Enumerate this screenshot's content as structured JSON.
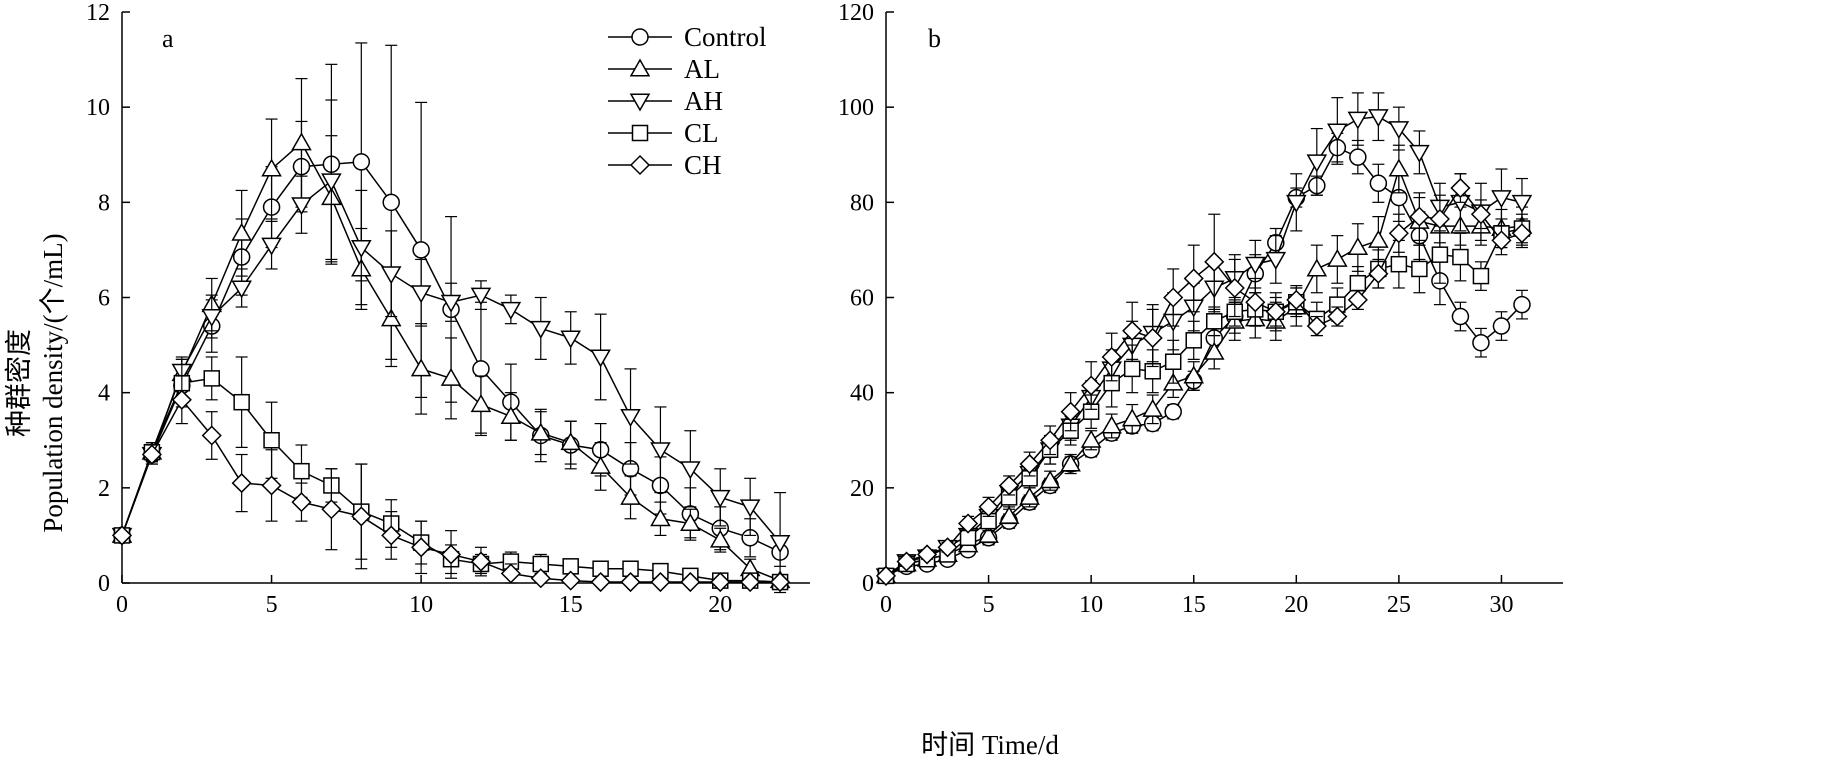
{
  "figure": {
    "ylabel_cn": "种群密度",
    "ylabel_en": "Population density/(个/mL)",
    "xlabel": "时间 Time/d"
  },
  "legend": [
    "Control",
    "AL",
    "AH",
    "CL",
    "CH"
  ],
  "chart_data": [
    {
      "type": "line",
      "panel_label": "a",
      "xlim": [
        0,
        23
      ],
      "ylim": [
        0,
        12
      ],
      "x_ticks": [
        0,
        5,
        10,
        15,
        20
      ],
      "y_ticks": [
        0,
        2,
        4,
        6,
        8,
        10,
        12
      ],
      "series": [
        {
          "name": "Control",
          "marker": "circle",
          "x": [
            0,
            1,
            2,
            3,
            4,
            5,
            6,
            7,
            8,
            9,
            10,
            11,
            12,
            13,
            14,
            15,
            16,
            17,
            18,
            19,
            20,
            21,
            22
          ],
          "y": [
            1.0,
            2.7,
            4.15,
            5.4,
            6.85,
            7.9,
            8.75,
            8.8,
            8.85,
            8.0,
            7.0,
            5.75,
            4.5,
            3.8,
            3.1,
            2.9,
            2.8,
            2.4,
            2.05,
            1.45,
            1.15,
            0.95,
            0.65
          ],
          "err": [
            0,
            0.15,
            0.3,
            0.55,
            0.8,
            0.85,
            0.95,
            2.1,
            2.5,
            3.3,
            3.1,
            1.95,
            1.4,
            0.8,
            0.55,
            0.5,
            0.55,
            0.55,
            0.6,
            0.55,
            0.45,
            0.4,
            0.3
          ]
        },
        {
          "name": "AL",
          "marker": "triangle-up",
          "x": [
            0,
            1,
            2,
            3,
            4,
            5,
            6,
            7,
            8,
            9,
            10,
            11,
            12,
            13,
            14,
            15,
            16,
            17,
            18,
            19,
            20,
            21,
            22
          ],
          "y": [
            1.0,
            2.75,
            4.4,
            5.85,
            7.35,
            8.7,
            9.25,
            8.1,
            6.6,
            5.55,
            4.5,
            4.3,
            3.75,
            3.5,
            3.15,
            2.95,
            2.45,
            1.8,
            1.35,
            1.25,
            0.9,
            0.3,
            0.05
          ],
          "err": [
            0,
            0.2,
            0.3,
            0.55,
            0.9,
            1.05,
            1.35,
            1.3,
            0.85,
            1.0,
            0.95,
            0.85,
            0.6,
            0.5,
            0.45,
            0.45,
            0.5,
            0.45,
            0.35,
            0.3,
            0.25,
            0.2,
            0.05
          ]
        },
        {
          "name": "AH",
          "marker": "triangle-down",
          "x": [
            0,
            1,
            2,
            3,
            4,
            5,
            6,
            7,
            8,
            9,
            10,
            11,
            12,
            13,
            14,
            15,
            16,
            17,
            18,
            19,
            20,
            21,
            22
          ],
          "y": [
            1.0,
            2.7,
            4.45,
            5.6,
            6.2,
            7.1,
            7.95,
            8.45,
            7.05,
            6.5,
            6.1,
            5.9,
            6.05,
            5.75,
            5.35,
            5.15,
            4.75,
            3.5,
            2.8,
            2.4,
            1.8,
            1.6,
            0.85
          ],
          "err": [
            0,
            0.2,
            0.3,
            0.45,
            0.4,
            0.5,
            0.6,
            1.7,
            1.2,
            0.9,
            0.7,
            0.4,
            0.3,
            0.3,
            0.65,
            0.55,
            0.9,
            1.0,
            0.9,
            0.8,
            0.6,
            0.6,
            1.05
          ]
        },
        {
          "name": "CL",
          "marker": "square",
          "x": [
            0,
            1,
            2,
            3,
            4,
            5,
            6,
            7,
            8,
            9,
            10,
            11,
            12,
            13,
            14,
            15,
            16,
            17,
            18,
            19,
            20,
            21,
            22
          ],
          "y": [
            1.0,
            2.75,
            4.2,
            4.3,
            3.8,
            3.0,
            2.35,
            2.05,
            1.5,
            1.25,
            0.85,
            0.5,
            0.4,
            0.45,
            0.4,
            0.35,
            0.3,
            0.3,
            0.25,
            0.15,
            0.05,
            0.05,
            0.02
          ],
          "err": [
            0,
            0.2,
            0.5,
            0.45,
            0.95,
            0.8,
            0.55,
            0.35,
            1.0,
            0.5,
            0.45,
            0.3,
            0.2,
            0.2,
            0.2,
            0.15,
            0.15,
            0.15,
            0.15,
            0.1,
            0.05,
            0.05,
            0.02
          ]
        },
        {
          "name": "CH",
          "marker": "diamond",
          "x": [
            0,
            1,
            2,
            3,
            4,
            5,
            6,
            7,
            8,
            9,
            10,
            11,
            12,
            13,
            14,
            15,
            16,
            17,
            18,
            19,
            20,
            21,
            22
          ],
          "y": [
            1.0,
            2.7,
            3.85,
            3.1,
            2.1,
            2.05,
            1.7,
            1.55,
            1.4,
            1.0,
            0.75,
            0.6,
            0.45,
            0.2,
            0.1,
            0.05,
            0.02,
            0.02,
            0.02,
            0.02,
            0.02,
            0.02,
            0.02
          ],
          "err": [
            0,
            0.2,
            0.5,
            0.5,
            0.6,
            0.75,
            0.4,
            0.85,
            1.1,
            0.5,
            0.55,
            0.5,
            0.3,
            0.2,
            0.1,
            0.05,
            0.02,
            0.02,
            0.02,
            0.02,
            0.02,
            0.02,
            0.02
          ]
        }
      ]
    },
    {
      "type": "line",
      "panel_label": "b",
      "xlim": [
        0,
        33
      ],
      "ylim": [
        0,
        120
      ],
      "x_ticks": [
        0,
        5,
        10,
        15,
        20,
        25,
        30
      ],
      "y_ticks": [
        0,
        20,
        40,
        60,
        80,
        100,
        120
      ],
      "series": [
        {
          "name": "Control",
          "marker": "circle",
          "x": [
            0,
            1,
            2,
            3,
            4,
            5,
            6,
            7,
            8,
            9,
            10,
            11,
            12,
            13,
            14,
            15,
            16,
            17,
            18,
            19,
            20,
            21,
            22,
            23,
            24,
            25,
            26,
            27,
            28,
            29,
            30,
            31
          ],
          "y": [
            1.5,
            3.5,
            4,
            5,
            7,
            9.5,
            13,
            17,
            20.5,
            25,
            28,
            31.5,
            33,
            33.5,
            36,
            42.5,
            51.5,
            56,
            65,
            71.5,
            81,
            83.5,
            91.5,
            89.5,
            84,
            81,
            73,
            63.5,
            56,
            50.5,
            54,
            58.5
          ],
          "err": [
            0.5,
            1,
            1,
            1,
            1,
            1.5,
            1.5,
            1.5,
            1.5,
            1.5,
            1.5,
            1.5,
            1.5,
            1.5,
            1.5,
            2,
            3,
            3.5,
            4,
            3,
            2,
            2,
            3,
            3.5,
            4,
            5,
            5,
            5,
            3,
            3,
            3,
            3
          ]
        },
        {
          "name": "AL",
          "marker": "triangle-up",
          "x": [
            0,
            1,
            2,
            3,
            4,
            5,
            6,
            7,
            8,
            9,
            10,
            11,
            12,
            13,
            14,
            15,
            16,
            17,
            18,
            19,
            20,
            21,
            22,
            23,
            24,
            25,
            26,
            27,
            28,
            29,
            30,
            31
          ],
          "y": [
            1.5,
            4,
            5,
            6,
            8,
            10,
            14,
            18,
            21.5,
            25,
            30,
            33,
            34.5,
            36.5,
            42,
            43.5,
            48.5,
            55,
            55.5,
            55,
            58,
            66,
            68,
            70.5,
            72,
            87,
            76,
            75,
            75,
            75,
            74.5,
            75
          ],
          "err": [
            0.5,
            1,
            1,
            1,
            1,
            1.5,
            1.5,
            2,
            2,
            2,
            2,
            2.5,
            3,
            3,
            3,
            3,
            3.5,
            4,
            4,
            4,
            4,
            5,
            5,
            5,
            5,
            5,
            5,
            5,
            4,
            4,
            4,
            4
          ]
        },
        {
          "name": "AH",
          "marker": "triangle-down",
          "x": [
            0,
            1,
            2,
            3,
            4,
            5,
            6,
            7,
            8,
            9,
            10,
            11,
            12,
            13,
            14,
            15,
            16,
            17,
            18,
            19,
            20,
            21,
            22,
            23,
            24,
            25,
            26,
            27,
            28,
            29,
            30,
            31
          ],
          "y": [
            1.5,
            4.5,
            5.5,
            7.5,
            10,
            14,
            19,
            23,
            28,
            33,
            39,
            45,
            50,
            52.5,
            55,
            58,
            62,
            64,
            67,
            68,
            80,
            88.5,
            95,
            97.5,
            98,
            95.5,
            90.5,
            79,
            80,
            78,
            81,
            80
          ],
          "err": [
            0.5,
            1,
            1,
            1,
            1.5,
            2,
            2,
            2.5,
            3,
            3,
            3.5,
            4,
            5,
            6,
            6,
            5,
            5,
            5,
            5,
            5,
            6,
            7,
            7,
            5.5,
            5,
            4.5,
            4.5,
            5,
            6,
            6,
            6,
            5
          ]
        },
        {
          "name": "CL",
          "marker": "square",
          "x": [
            0,
            1,
            2,
            3,
            4,
            5,
            6,
            7,
            8,
            9,
            10,
            11,
            12,
            13,
            14,
            15,
            16,
            17,
            18,
            19,
            20,
            21,
            22,
            23,
            24,
            25,
            26,
            27,
            28,
            29,
            30,
            31
          ],
          "y": [
            1.5,
            4,
            5,
            6,
            9.5,
            13,
            18,
            22,
            28,
            32,
            36,
            42,
            45,
            44.5,
            46.5,
            51,
            55,
            57,
            57.5,
            57,
            59,
            55.5,
            58.5,
            63,
            66,
            67,
            66,
            69,
            68.5,
            64.5,
            73.5,
            74.5
          ],
          "err": [
            0.5,
            1,
            1,
            1,
            1.5,
            2,
            2,
            2,
            3,
            3,
            3.5,
            5,
            5,
            4.5,
            4.5,
            4,
            3,
            3,
            3.5,
            3,
            3,
            3.5,
            3.5,
            3.5,
            4,
            5,
            5,
            6,
            5,
            3,
            3,
            3
          ]
        },
        {
          "name": "CH",
          "marker": "diamond",
          "x": [
            0,
            1,
            2,
            3,
            4,
            5,
            6,
            7,
            8,
            9,
            10,
            11,
            12,
            13,
            14,
            15,
            16,
            17,
            18,
            19,
            20,
            21,
            22,
            23,
            24,
            25,
            26,
            27,
            28,
            29,
            30,
            31
          ],
          "y": [
            1.5,
            4.5,
            6,
            7.5,
            12.5,
            16,
            20.5,
            25,
            30,
            36,
            41.5,
            47.5,
            53,
            51.5,
            60,
            64,
            67.5,
            62,
            59,
            57,
            59.5,
            54,
            56,
            59.5,
            65,
            73.5,
            77,
            76.5,
            83,
            77.5,
            72,
            73.5
          ],
          "err": [
            0.5,
            1,
            1,
            1,
            1.5,
            2,
            2,
            2.5,
            3,
            4,
            5,
            5,
            6,
            6,
            6,
            7,
            10,
            6,
            5,
            4,
            3,
            2,
            2,
            2,
            3,
            4,
            5,
            5,
            3,
            3,
            3,
            3
          ]
        }
      ]
    }
  ]
}
